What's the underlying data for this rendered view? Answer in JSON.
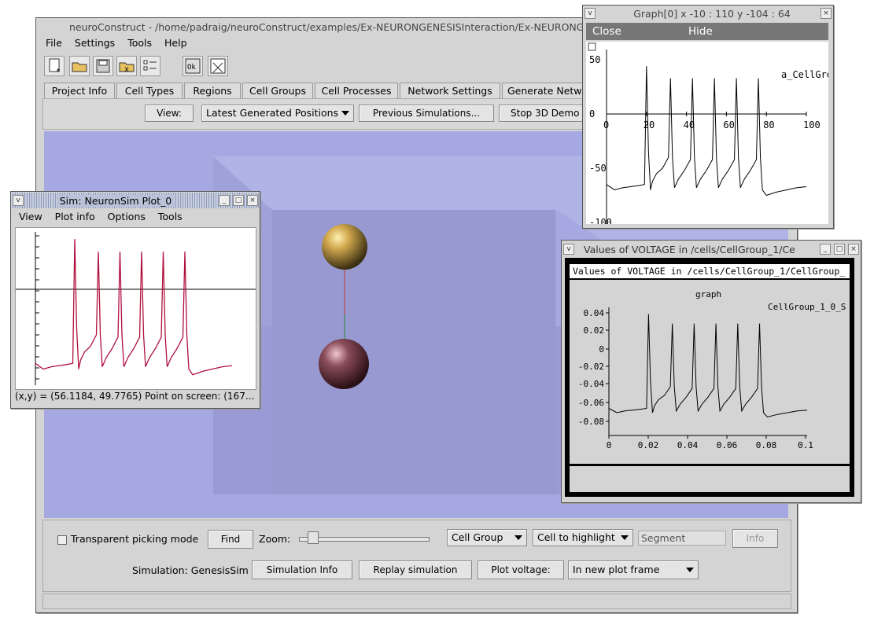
{
  "main": {
    "title": "neuroConstruct - /home/padraig/neuroConstruct/examples/Ex-NEURONGENESISInteraction/Ex-NEURONGENESISInteraction.neuro.xml",
    "menu": [
      "File",
      "Settings",
      "Tools",
      "Help"
    ],
    "toolbar_icons": [
      "new-project-icon",
      "open-folder-icon",
      "save-icon",
      "close-project-icon",
      "options-icon",
      "run-icon",
      "exit-icon"
    ],
    "tabs": [
      "Project Info",
      "Cell Types",
      "Regions",
      "Cell Groups",
      "Cell Processes",
      "Network Settings",
      "Generate Netw"
    ],
    "view_label": "View:",
    "view_value": "Latest Generated Positions",
    "prev_sims": "Previous Simulations...",
    "stop_demo": "Stop 3D Demo",
    "transparent_label": "Transparent picking mode",
    "find": "Find",
    "zoom_label": "Zoom:",
    "zoom_level": 0.08,
    "cell_group": "Cell Group",
    "cell_highlight": "Cell to highlight",
    "segment_placeholder": "Segment",
    "info": "Info",
    "simulation_label": "Simulation: GenesisSim",
    "sim_info": "Simulation Info",
    "replay": "Replay simulation",
    "plot_voltage": "Plot voltage:",
    "plot_frame": "In new plot frame"
  },
  "sim": {
    "title": "Sim: NeuronSim Plot_0",
    "menu": [
      "View",
      "Plot info",
      "Options",
      "Tools"
    ],
    "status": "(x,y) = (56.1184, 49.7765) Point on screen: (167..."
  },
  "graph": {
    "title": "Graph[0]  x -10 : 110  y -104 : 64",
    "close": "Close",
    "hide": "Hide",
    "legend": "a_CellGro",
    "y_ticks": [
      "50",
      "0",
      "-50",
      "-100"
    ],
    "x_ticks": [
      "0",
      "20",
      "40",
      "60",
      "80",
      "100"
    ]
  },
  "values": {
    "title": "Values of VOLTAGE in /cells/CellGroup_1/Ce",
    "inner_title": "Values of VOLTAGE in /cells/CellGroup_1/CellGroup_",
    "graph_label": "graph",
    "legend": "CellGroup_1_0_S",
    "y_ticks": [
      "0.04",
      "0.02",
      "0",
      "-0.02",
      "-0.04",
      "-0.06",
      "-0.08"
    ],
    "x_ticks": [
      "0",
      "0.02",
      "0.04",
      "0.06",
      "0.08",
      "0.1"
    ]
  },
  "chart_data": [
    {
      "type": "line",
      "x": [
        0,
        4,
        8,
        12,
        16,
        19,
        20,
        21,
        22,
        23,
        25,
        28,
        31,
        32,
        33,
        34,
        36,
        39,
        42,
        43,
        44,
        45,
        47,
        50,
        53,
        54,
        55,
        56,
        58,
        61,
        64,
        65,
        66,
        67,
        69,
        72,
        75,
        76,
        77,
        78,
        80,
        85,
        90,
        95,
        100
      ],
      "y": [
        -65,
        -70,
        -68,
        -67,
        -66,
        -65,
        44,
        -35,
        -70,
        -62,
        -55,
        -50,
        -40,
        33,
        -40,
        -68,
        -60,
        -52,
        -42,
        33,
        -40,
        -68,
        -60,
        -52,
        -42,
        33,
        -40,
        -68,
        -60,
        -52,
        -42,
        33,
        -40,
        -68,
        -60,
        -52,
        -42,
        33,
        -40,
        -70,
        -75,
        -72,
        -70,
        -68,
        -67
      ],
      "xlim": [
        -10,
        110
      ],
      "ylim": [
        -104,
        64
      ]
    }
  ]
}
